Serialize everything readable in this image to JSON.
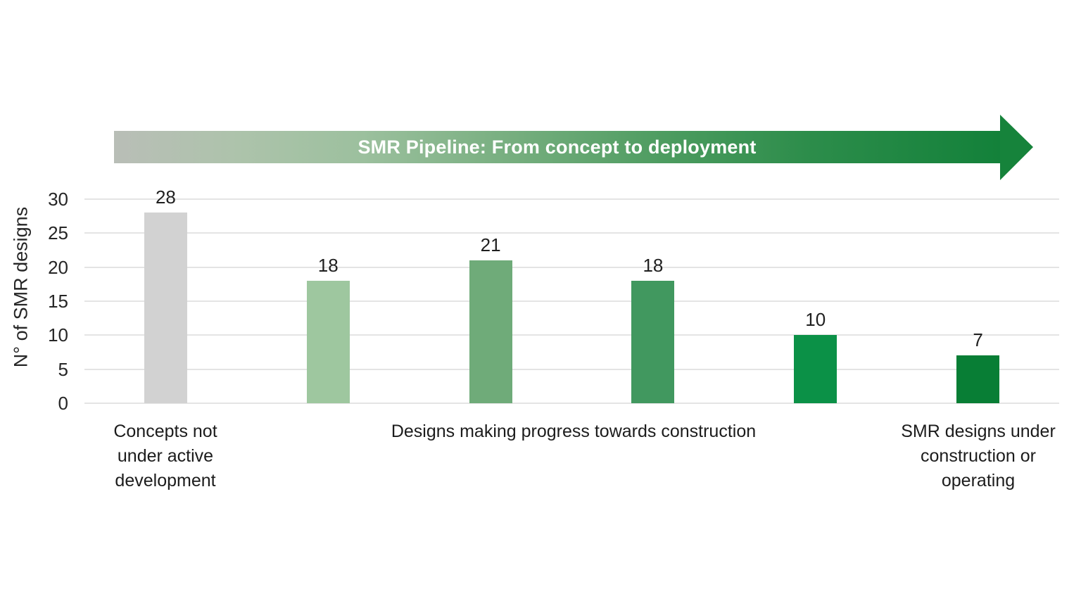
{
  "chart_data": {
    "type": "bar",
    "title": "SMR Pipeline: From concept to deployment",
    "ylabel": "N° of SMR designs",
    "xlabel": "",
    "ylim": [
      0,
      30
    ],
    "yticks": [
      0,
      5,
      10,
      15,
      20,
      25,
      30
    ],
    "grid": "horizontal",
    "legend": "none",
    "banner": {
      "text": "SMR Pipeline: From concept to deployment",
      "gradient_start": "#b9beb7",
      "gradient_end": "#13813a",
      "text_color": "#ffffff"
    },
    "bars": [
      {
        "value": 28,
        "color": "#d2d2d2",
        "stage": "Concepts not under active development"
      },
      {
        "value": 18,
        "color": "#9ec79f",
        "stage": "Designs making progress towards construction"
      },
      {
        "value": 21,
        "color": "#6fab79",
        "stage": "Designs making progress towards construction"
      },
      {
        "value": 18,
        "color": "#41985f",
        "stage": "Designs making progress towards construction"
      },
      {
        "value": 10,
        "color": "#0b9147",
        "stage": "Designs making progress towards construction"
      },
      {
        "value": 7,
        "color": "#087e35",
        "stage": "SMR designs under construction or operating"
      }
    ],
    "group_labels": [
      {
        "text": "Concepts not\nunder active\ndevelopment"
      },
      {
        "text": "Designs making progress towards construction"
      },
      {
        "text": "SMR designs under\nconstruction or\noperating"
      }
    ]
  }
}
